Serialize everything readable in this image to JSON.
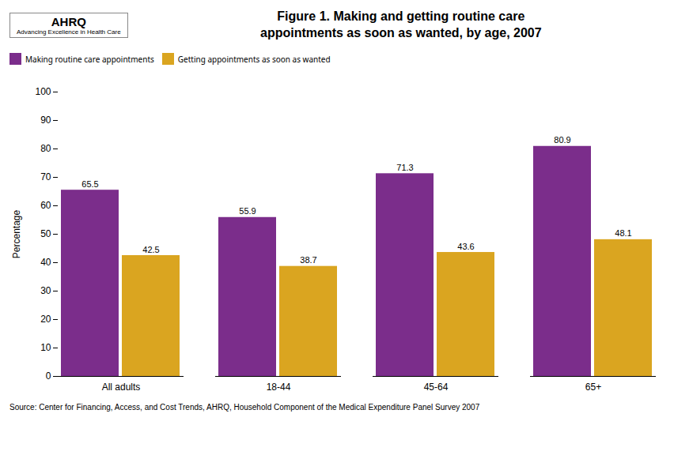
{
  "chart_data": {
    "type": "bar",
    "title": "Figure 1. Making and getting routine care\nappointments as soon as wanted, by age, 2007",
    "annotations": [
      "AHRQ",
      "Advancing Excellence in Health Care"
    ],
    "caption": "Source: Center for Financing, Access, and Cost Trends, AHRQ, Household Component of the Medical Expenditure Panel Survey 2007",
    "categories": [
      "All adults",
      "18-44",
      "45-64",
      "65+"
    ],
    "series": [
      {
        "name": "Making routine care appointments",
        "color": "#7B2D8B",
        "values": [
          65.5,
          55.9,
          71.3,
          80.9
        ]
      },
      {
        "name": "Getting appointments as soon as wanted",
        "color": "#DAA520",
        "values": [
          42.5,
          38.7,
          43.6,
          48.1
        ]
      }
    ],
    "ylabel": "Percentage",
    "ylim": [
      0,
      100
    ],
    "yticks": [
      0,
      10,
      20,
      30,
      40,
      50,
      60,
      70,
      80,
      90,
      100
    ],
    "grid": false,
    "legend": "top",
    "data_labels": true
  }
}
